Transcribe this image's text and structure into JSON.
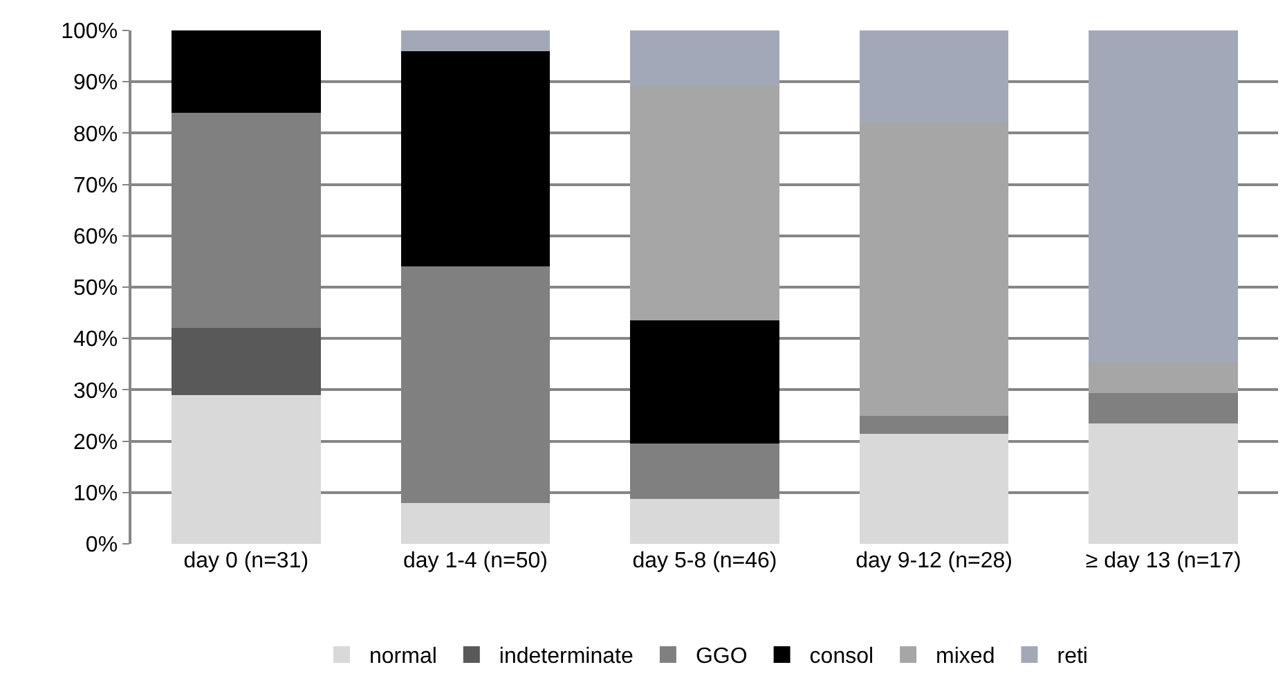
{
  "chart_data": {
    "type": "bar",
    "stacked": true,
    "categories": [
      "day 0 (n=31)",
      "day 1-4 (n=50)",
      "day 5-8 (n=46)",
      "day 9-12 (n=28)",
      "≥ day 13 (n=17)"
    ],
    "series": [
      {
        "name": "normal",
        "color": "#d9d9d9",
        "values": [
          29,
          8,
          8.7,
          21.4,
          23.5
        ]
      },
      {
        "name": "indeterminate",
        "color": "#595959",
        "values": [
          13,
          0,
          0,
          0,
          0
        ]
      },
      {
        "name": "GGO",
        "color": "#808080",
        "values": [
          42,
          46,
          10.9,
          3.6,
          5.9
        ]
      },
      {
        "name": "consol",
        "color": "#000000",
        "values": [
          16,
          42,
          23.9,
          0,
          0
        ]
      },
      {
        "name": "mixed",
        "color": "#a6a6a6",
        "values": [
          0,
          0,
          45.7,
          57.1,
          5.9
        ]
      },
      {
        "name": "reti",
        "color": "#a3a8b8",
        "values": [
          0,
          4,
          10.9,
          17.9,
          64.7
        ]
      }
    ],
    "ylim": [
      0,
      100
    ],
    "yticks": [
      {
        "value": 0,
        "label": "0%"
      },
      {
        "value": 10,
        "label": "10%"
      },
      {
        "value": 20,
        "label": "20%"
      },
      {
        "value": 30,
        "label": "30%"
      },
      {
        "value": 40,
        "label": "40%"
      },
      {
        "value": 50,
        "label": "50%"
      },
      {
        "value": 60,
        "label": "60%"
      },
      {
        "value": 70,
        "label": "70%"
      },
      {
        "value": 80,
        "label": "80%"
      },
      {
        "value": 90,
        "label": "90%"
      },
      {
        "value": 100,
        "label": "100%"
      }
    ],
    "grid": "y",
    "legend": "bottom"
  }
}
